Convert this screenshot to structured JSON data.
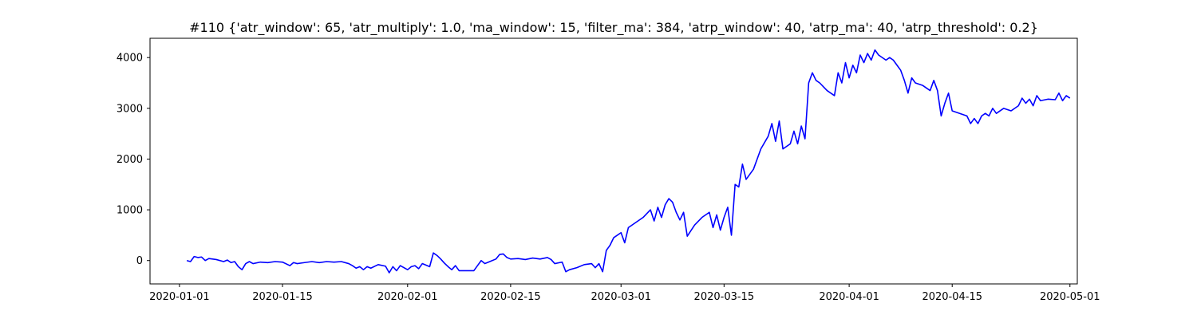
{
  "chart_data": {
    "type": "line",
    "title": "#110 {'atr_window': 65, 'atr_multiply': 1.0, 'ma_window': 15, 'filter_ma': 384, 'atrp_window': 40, 'atrp_ma': 40, 'atrp_threshold': 0.2}",
    "xlabel": "",
    "ylabel": "",
    "grid": false,
    "x_ticks": [
      "2020-01-01",
      "2020-01-15",
      "2020-02-01",
      "2020-02-15",
      "2020-03-01",
      "2020-03-15",
      "2020-04-01",
      "2020-04-15",
      "2020-05-01"
    ],
    "y_ticks": [
      0,
      1000,
      2000,
      3000,
      4000
    ],
    "xlim": [
      "2019-12-28",
      "2020-05-02"
    ],
    "ylim": [
      -460,
      4380
    ],
    "series_color": "#0000ff",
    "points": [
      [
        "2020-01-02",
        0
      ],
      [
        "2020-01-02T12:00",
        -20
      ],
      [
        "2020-01-03",
        80
      ],
      [
        "2020-01-03T12:00",
        60
      ],
      [
        "2020-01-04",
        70
      ],
      [
        "2020-01-04T12:00",
        0
      ],
      [
        "2020-01-05",
        40
      ],
      [
        "2020-01-06",
        20
      ],
      [
        "2020-01-07",
        -20
      ],
      [
        "2020-01-07T12:00",
        10
      ],
      [
        "2020-01-08",
        -40
      ],
      [
        "2020-01-08T12:00",
        -20
      ],
      [
        "2020-01-09",
        -120
      ],
      [
        "2020-01-09T12:00",
        -180
      ],
      [
        "2020-01-10",
        -60
      ],
      [
        "2020-01-10T12:00",
        -20
      ],
      [
        "2020-01-11",
        -60
      ],
      [
        "2020-01-12",
        -30
      ],
      [
        "2020-01-13",
        -40
      ],
      [
        "2020-01-14",
        -20
      ],
      [
        "2020-01-15",
        -30
      ],
      [
        "2020-01-16",
        -100
      ],
      [
        "2020-01-16T12:00",
        -40
      ],
      [
        "2020-01-17",
        -60
      ],
      [
        "2020-01-18",
        -40
      ],
      [
        "2020-01-19",
        -20
      ],
      [
        "2020-01-20",
        -40
      ],
      [
        "2020-01-21",
        -20
      ],
      [
        "2020-01-22",
        -30
      ],
      [
        "2020-01-23",
        -20
      ],
      [
        "2020-01-24",
        -60
      ],
      [
        "2020-01-24T12:00",
        -100
      ],
      [
        "2020-01-25",
        -150
      ],
      [
        "2020-01-25T12:00",
        -120
      ],
      [
        "2020-01-26",
        -180
      ],
      [
        "2020-01-26T12:00",
        -120
      ],
      [
        "2020-01-27",
        -150
      ],
      [
        "2020-01-28",
        -80
      ],
      [
        "2020-01-29",
        -110
      ],
      [
        "2020-01-29T12:00",
        -240
      ],
      [
        "2020-01-30",
        -120
      ],
      [
        "2020-01-30T12:00",
        -200
      ],
      [
        "2020-01-31",
        -100
      ],
      [
        "2020-02-01",
        -180
      ],
      [
        "2020-02-01T12:00",
        -120
      ],
      [
        "2020-02-02",
        -100
      ],
      [
        "2020-02-02T12:00",
        -160
      ],
      [
        "2020-02-03",
        -60
      ],
      [
        "2020-02-04",
        -120
      ],
      [
        "2020-02-04T12:00",
        150
      ],
      [
        "2020-02-05",
        100
      ],
      [
        "2020-02-05T12:00",
        30
      ],
      [
        "2020-02-06",
        -50
      ],
      [
        "2020-02-06T12:00",
        -120
      ],
      [
        "2020-02-07",
        -180
      ],
      [
        "2020-02-07T12:00",
        -100
      ],
      [
        "2020-02-08",
        -200
      ],
      [
        "2020-02-09",
        -200
      ],
      [
        "2020-02-10",
        -200
      ],
      [
        "2020-02-10T12:00",
        -100
      ],
      [
        "2020-02-11",
        0
      ],
      [
        "2020-02-11T12:00",
        -60
      ],
      [
        "2020-02-12",
        -30
      ],
      [
        "2020-02-13",
        30
      ],
      [
        "2020-02-13T12:00",
        120
      ],
      [
        "2020-02-14",
        130
      ],
      [
        "2020-02-14T12:00",
        60
      ],
      [
        "2020-02-15",
        30
      ],
      [
        "2020-02-16",
        40
      ],
      [
        "2020-02-17",
        20
      ],
      [
        "2020-02-18",
        50
      ],
      [
        "2020-02-19",
        30
      ],
      [
        "2020-02-20",
        60
      ],
      [
        "2020-02-20T12:00",
        20
      ],
      [
        "2020-02-21",
        -60
      ],
      [
        "2020-02-22",
        -30
      ],
      [
        "2020-02-22T12:00",
        -220
      ],
      [
        "2020-02-23",
        -180
      ],
      [
        "2020-02-24",
        -140
      ],
      [
        "2020-02-25",
        -80
      ],
      [
        "2020-02-26",
        -60
      ],
      [
        "2020-02-26T12:00",
        -140
      ],
      [
        "2020-02-27",
        -60
      ],
      [
        "2020-02-27T12:00",
        -220
      ],
      [
        "2020-02-28",
        200
      ],
      [
        "2020-02-28T12:00",
        300
      ],
      [
        "2020-02-29",
        450
      ],
      [
        "2020-03-01",
        550
      ],
      [
        "2020-03-01T12:00",
        350
      ],
      [
        "2020-03-02",
        650
      ],
      [
        "2020-03-03",
        750
      ],
      [
        "2020-03-04",
        850
      ],
      [
        "2020-03-05",
        1000
      ],
      [
        "2020-03-05T12:00",
        780
      ],
      [
        "2020-03-06",
        1050
      ],
      [
        "2020-03-06T12:00",
        850
      ],
      [
        "2020-03-07",
        1100
      ],
      [
        "2020-03-07T12:00",
        1220
      ],
      [
        "2020-03-08",
        1150
      ],
      [
        "2020-03-08T12:00",
        950
      ],
      [
        "2020-03-09",
        800
      ],
      [
        "2020-03-09T12:00",
        950
      ],
      [
        "2020-03-10",
        480
      ],
      [
        "2020-03-11",
        700
      ],
      [
        "2020-03-12",
        850
      ],
      [
        "2020-03-13",
        950
      ],
      [
        "2020-03-13T12:00",
        650
      ],
      [
        "2020-03-14",
        900
      ],
      [
        "2020-03-14T12:00",
        600
      ],
      [
        "2020-03-15",
        850
      ],
      [
        "2020-03-15T12:00",
        1050
      ],
      [
        "2020-03-16",
        500
      ],
      [
        "2020-03-16T12:00",
        1500
      ],
      [
        "2020-03-17",
        1450
      ],
      [
        "2020-03-17T12:00",
        1900
      ],
      [
        "2020-03-18",
        1600
      ],
      [
        "2020-03-19",
        1800
      ],
      [
        "2020-03-20",
        2200
      ],
      [
        "2020-03-21",
        2450
      ],
      [
        "2020-03-21T12:00",
        2700
      ],
      [
        "2020-03-22",
        2350
      ],
      [
        "2020-03-22T12:00",
        2750
      ],
      [
        "2020-03-23",
        2200
      ],
      [
        "2020-03-24",
        2300
      ],
      [
        "2020-03-24T12:00",
        2550
      ],
      [
        "2020-03-25",
        2300
      ],
      [
        "2020-03-25T12:00",
        2650
      ],
      [
        "2020-03-26",
        2400
      ],
      [
        "2020-03-26T12:00",
        3500
      ],
      [
        "2020-03-27",
        3700
      ],
      [
        "2020-03-27T12:00",
        3550
      ],
      [
        "2020-03-28",
        3500
      ],
      [
        "2020-03-29",
        3350
      ],
      [
        "2020-03-30",
        3250
      ],
      [
        "2020-03-30T12:00",
        3700
      ],
      [
        "2020-03-31",
        3500
      ],
      [
        "2020-03-31T12:00",
        3900
      ],
      [
        "2020-04-01",
        3600
      ],
      [
        "2020-04-01T12:00",
        3850
      ],
      [
        "2020-04-02",
        3700
      ],
      [
        "2020-04-02T12:00",
        4050
      ],
      [
        "2020-04-03",
        3900
      ],
      [
        "2020-04-03T12:00",
        4080
      ],
      [
        "2020-04-04",
        3950
      ],
      [
        "2020-04-04T12:00",
        4150
      ],
      [
        "2020-04-05",
        4050
      ],
      [
        "2020-04-06",
        3950
      ],
      [
        "2020-04-06T12:00",
        4000
      ],
      [
        "2020-04-07",
        3950
      ],
      [
        "2020-04-07T12:00",
        3850
      ],
      [
        "2020-04-08",
        3750
      ],
      [
        "2020-04-08T12:00",
        3550
      ],
      [
        "2020-04-09",
        3300
      ],
      [
        "2020-04-09T12:00",
        3600
      ],
      [
        "2020-04-10",
        3500
      ],
      [
        "2020-04-11",
        3450
      ],
      [
        "2020-04-12",
        3350
      ],
      [
        "2020-04-12T12:00",
        3550
      ],
      [
        "2020-04-13",
        3350
      ],
      [
        "2020-04-13T12:00",
        2850
      ],
      [
        "2020-04-14",
        3100
      ],
      [
        "2020-04-14T12:00",
        3300
      ],
      [
        "2020-04-15",
        2950
      ],
      [
        "2020-04-17",
        2850
      ],
      [
        "2020-04-17T12:00",
        2700
      ],
      [
        "2020-04-18",
        2800
      ],
      [
        "2020-04-18T12:00",
        2700
      ],
      [
        "2020-04-19",
        2850
      ],
      [
        "2020-04-19T12:00",
        2900
      ],
      [
        "2020-04-20",
        2850
      ],
      [
        "2020-04-20T12:00",
        3000
      ],
      [
        "2020-04-21",
        2900
      ],
      [
        "2020-04-22",
        3000
      ],
      [
        "2020-04-23",
        2950
      ],
      [
        "2020-04-24",
        3050
      ],
      [
        "2020-04-24T12:00",
        3200
      ],
      [
        "2020-04-25",
        3100
      ],
      [
        "2020-04-25T12:00",
        3180
      ],
      [
        "2020-04-26",
        3050
      ],
      [
        "2020-04-26T12:00",
        3250
      ],
      [
        "2020-04-27",
        3150
      ],
      [
        "2020-04-28",
        3180
      ],
      [
        "2020-04-29",
        3170
      ],
      [
        "2020-04-29T12:00",
        3300
      ],
      [
        "2020-04-30",
        3150
      ],
      [
        "2020-04-30T12:00",
        3250
      ],
      [
        "2020-05-01",
        3200
      ]
    ]
  }
}
